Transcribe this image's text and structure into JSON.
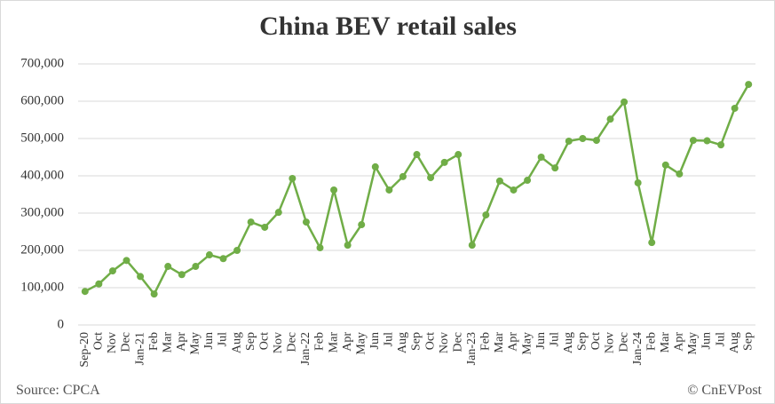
{
  "chart_data": {
    "type": "line",
    "title": "China BEV retail sales",
    "source": "Source: CPCA",
    "credit": "© CnEVPost",
    "categories": [
      "Sep-20",
      "Oct",
      "Nov",
      "Dec",
      "Jan-21",
      "Feb",
      "Mar",
      "Apr",
      "May",
      "Jun",
      "Jul",
      "Aug",
      "Sep",
      "Oct",
      "Nov",
      "Dec",
      "Jan-22",
      "Feb",
      "Mar",
      "Apr",
      "May",
      "Jun",
      "Jul",
      "Aug",
      "Sep",
      "Oct",
      "Nov",
      "Dec",
      "Jan-23",
      "Feb",
      "Mar",
      "Apr",
      "May",
      "Jun",
      "Jul",
      "Aug",
      "Sep",
      "Oct",
      "Nov",
      "Dec",
      "Jan-24",
      "Feb",
      "Mar",
      "Apr",
      "May",
      "Jun",
      "Jul",
      "Aug",
      "Sep"
    ],
    "values": [
      90000,
      110000,
      145000,
      173000,
      130000,
      83000,
      157000,
      135000,
      157000,
      188000,
      178000,
      200000,
      276000,
      262000,
      302000,
      393000,
      276000,
      207000,
      362000,
      214000,
      269000,
      424000,
      362000,
      398000,
      457000,
      395000,
      436000,
      457000,
      214000,
      295000,
      386000,
      362000,
      388000,
      450000,
      421000,
      493000,
      500000,
      495000,
      552000,
      598000,
      381000,
      221000,
      429000,
      405000,
      495000,
      494000,
      483000,
      581000,
      645000
    ],
    "color": "#70ad47",
    "ylim": [
      0,
      700000
    ],
    "yticks": [
      0,
      {
        "value": 100000,
        "label": "100,000"
      },
      {
        "value": 200000,
        "label": "200,000"
      },
      {
        "value": 300000,
        "label": "300,000"
      },
      {
        "value": 400000,
        "label": "400,000"
      },
      {
        "value": 500000,
        "label": "500,000"
      },
      {
        "value": 600000,
        "label": "600,000"
      },
      {
        "value": 700000,
        "label": "700,000"
      }
    ],
    "grid": true
  }
}
